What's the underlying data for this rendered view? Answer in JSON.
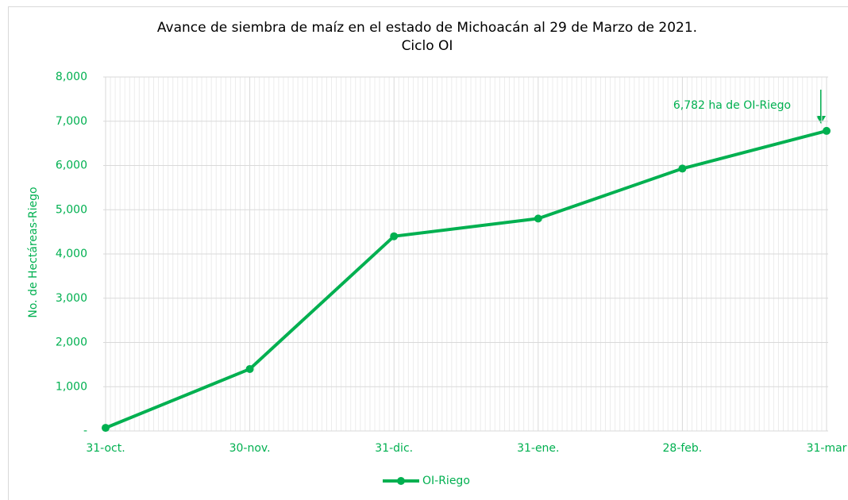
{
  "chart_data": {
    "type": "line",
    "title": [
      "Avance de siembra de maíz en el estado de Michoacán al 29 de Marzo de 2021.",
      "Ciclo OI"
    ],
    "y_label": "No. de Hectáreas-Riego",
    "categories": [
      "31-oct.",
      "30-nov.",
      "31-dic.",
      "31-ene.",
      "28-feb.",
      "31-mar"
    ],
    "series": [
      {
        "name": "OI-Riego",
        "color": "#00b050",
        "values": [
          70,
          1400,
          4400,
          4800,
          5930,
          6782
        ]
      }
    ],
    "ylim": [
      0,
      8000
    ],
    "yticks": [
      {
        "value": 0,
        "label": "-"
      },
      {
        "value": 1000,
        "label": "1,000"
      },
      {
        "value": 2000,
        "label": "2,000"
      },
      {
        "value": 3000,
        "label": "3,000"
      },
      {
        "value": 4000,
        "label": "4,000"
      },
      {
        "value": 5000,
        "label": "5,000"
      },
      {
        "value": 6000,
        "label": "6,000"
      },
      {
        "value": 7000,
        "label": "7,000"
      },
      {
        "value": 8000,
        "label": "8,000"
      }
    ],
    "annotation": "6,782 ha de OI-Riego",
    "grid": true,
    "legend": "bottom"
  }
}
